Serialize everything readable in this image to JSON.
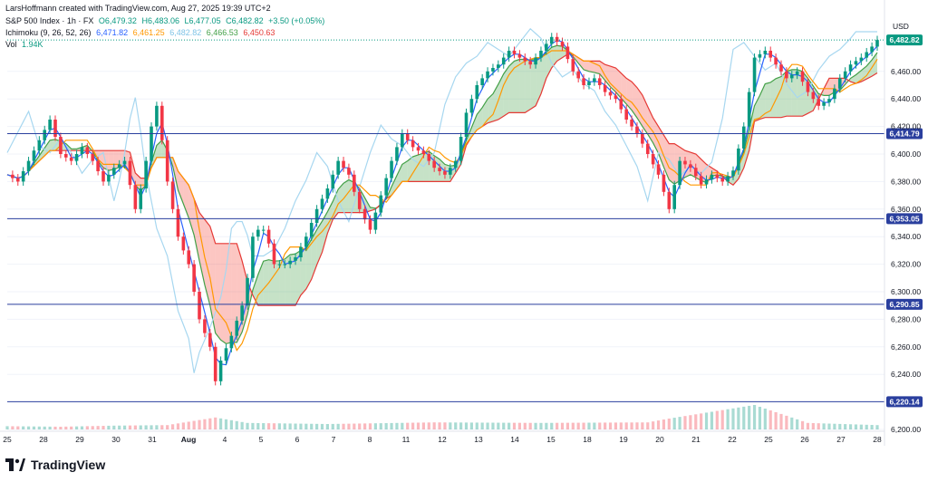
{
  "header": {
    "created_by": "LarsHoffmann created with TradingView.com, Aug 27, 2025 19:39 UTC+2",
    "symbol": "S&P 500 Index · 1h · FX",
    "ohlc": {
      "o": "O6,479.32",
      "h": "H6,483.06",
      "l": "L6,477.05",
      "c": "C6,482.82",
      "chg": "+3.50 (+0.05%)"
    },
    "ichimoku_label": "Ichimoku (9, 26, 52, 26)",
    "ichimoku_vals": [
      "6,471.82",
      "6,461.25",
      "6,482.82",
      "6,466.53",
      "6,450.63"
    ],
    "ichimoku_colors": [
      "#2962ff",
      "#ff9800",
      "#a7d7f0",
      "#43a047",
      "#e53935"
    ],
    "vol_label": "Vol",
    "vol_value": "1.94K"
  },
  "colors": {
    "up": "#089981",
    "down": "#f23645",
    "conversion": "#2962ff",
    "base": "#ff9800",
    "lagging": "#a7d7f0",
    "spanA": "#43a047",
    "spanB": "#e53935",
    "cloudUp": "rgba(67,160,71,0.30)",
    "cloudDown": "rgba(244,67,54,0.30)",
    "hline": "#2a3f9e",
    "last": "#089981"
  },
  "chart_data": {
    "type": "candlestick",
    "currency": "USD",
    "y_ticks": [
      "6,460.00",
      "6,440.00",
      "6,420.00",
      "6,400.00",
      "6,380.00",
      "6,360.00",
      "6,340.00",
      "6,320.00",
      "6,300.00",
      "6,280.00",
      "6,260.00",
      "6,240.00",
      "6,200.00"
    ],
    "ylim": [
      6200,
      6500
    ],
    "x_ticks": [
      "25",
      "28",
      "29",
      "30",
      "31",
      "Aug",
      "4",
      "5",
      "6",
      "7",
      "8",
      "11",
      "12",
      "13",
      "14",
      "15",
      "18",
      "19",
      "20",
      "21",
      "22",
      "25",
      "26",
      "27",
      "28"
    ],
    "horizontal_levels": [
      {
        "value": 6414.79,
        "label": "6,414.79"
      },
      {
        "value": 6353.05,
        "label": "6,353.05"
      },
      {
        "value": 6290.85,
        "label": "6,290.85"
      },
      {
        "value": 6220.14,
        "label": "6,220.14"
      }
    ],
    "last_price": {
      "value": 6482.82,
      "label": "6,482.82"
    },
    "price_path": [
      [
        0,
        6385
      ],
      [
        2,
        6380
      ],
      [
        4,
        6395
      ],
      [
        6,
        6410
      ],
      [
        8,
        6425
      ],
      [
        10,
        6400
      ],
      [
        12,
        6395
      ],
      [
        14,
        6405
      ],
      [
        16,
        6395
      ],
      [
        18,
        6380
      ],
      [
        20,
        6390
      ],
      [
        22,
        6395
      ],
      [
        24,
        6360
      ],
      [
        25,
        6375
      ],
      [
        26,
        6395
      ],
      [
        27,
        6420
      ],
      [
        28,
        6435
      ],
      [
        29,
        6410
      ],
      [
        30,
        6380
      ],
      [
        32,
        6340
      ],
      [
        34,
        6320
      ],
      [
        36,
        6280
      ],
      [
        38,
        6260
      ],
      [
        39,
        6235
      ],
      [
        40,
        6250
      ],
      [
        42,
        6268
      ],
      [
        44,
        6290
      ],
      [
        45,
        6310
      ],
      [
        46,
        6340
      ],
      [
        47,
        6345
      ],
      [
        48,
        6345
      ],
      [
        49,
        6335
      ],
      [
        50,
        6320
      ],
      [
        52,
        6320
      ],
      [
        54,
        6325
      ],
      [
        56,
        6340
      ],
      [
        58,
        6360
      ],
      [
        60,
        6375
      ],
      [
        62,
        6395
      ],
      [
        64,
        6385
      ],
      [
        66,
        6360
      ],
      [
        68,
        6345
      ],
      [
        70,
        6370
      ],
      [
        72,
        6395
      ],
      [
        74,
        6415
      ],
      [
        76,
        6405
      ],
      [
        78,
        6400
      ],
      [
        80,
        6390
      ],
      [
        82,
        6385
      ],
      [
        84,
        6395
      ],
      [
        86,
        6430
      ],
      [
        88,
        6450
      ],
      [
        90,
        6460
      ],
      [
        92,
        6465
      ],
      [
        94,
        6475
      ],
      [
        96,
        6470
      ],
      [
        98,
        6465
      ],
      [
        100,
        6475
      ],
      [
        102,
        6485
      ],
      [
        104,
        6478
      ],
      [
        106,
        6460
      ],
      [
        108,
        6450
      ],
      [
        110,
        6455
      ],
      [
        112,
        6445
      ],
      [
        114,
        6440
      ],
      [
        116,
        6425
      ],
      [
        118,
        6415
      ],
      [
        120,
        6400
      ],
      [
        122,
        6385
      ],
      [
        124,
        6360
      ],
      [
        126,
        6395
      ],
      [
        128,
        6390
      ],
      [
        130,
        6378
      ],
      [
        132,
        6385
      ],
      [
        134,
        6380
      ],
      [
        136,
        6388
      ],
      [
        138,
        6420
      ],
      [
        140,
        6470
      ],
      [
        142,
        6475
      ],
      [
        144,
        6465
      ],
      [
        146,
        6455
      ],
      [
        148,
        6460
      ],
      [
        150,
        6445
      ],
      [
        152,
        6435
      ],
      [
        154,
        6440
      ],
      [
        156,
        6455
      ],
      [
        158,
        6465
      ],
      [
        160,
        6470
      ],
      [
        162,
        6478
      ],
      [
        163,
        6482.82
      ]
    ],
    "volume_path": [
      [
        0,
        6
      ],
      [
        10,
        5
      ],
      [
        20,
        7
      ],
      [
        30,
        8
      ],
      [
        39,
        22
      ],
      [
        45,
        12
      ],
      [
        60,
        10
      ],
      [
        80,
        13
      ],
      [
        100,
        12
      ],
      [
        120,
        13
      ],
      [
        124,
        20
      ],
      [
        140,
        45
      ],
      [
        150,
        12
      ],
      [
        163,
        8
      ]
    ],
    "vol_max": 100
  }
}
